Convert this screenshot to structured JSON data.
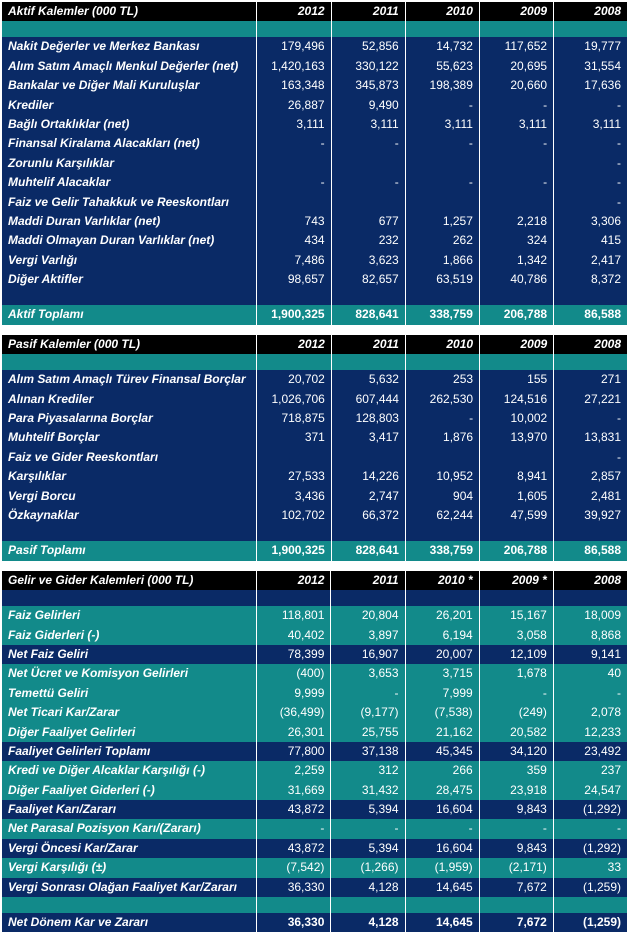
{
  "colors": {
    "header_bg": "#000000",
    "header_fg": "#ffffff",
    "navy_bg": "#0a2a66",
    "navy_fg": "#ffffff",
    "teal_bg": "#128a8a",
    "teal_fg": "#ffffff",
    "cell_border": "#ffffff"
  },
  "years": [
    "2012",
    "2011",
    "2010",
    "2009",
    "2008"
  ],
  "tables": {
    "assets": {
      "title": "Aktif Kalemler (000 TL)",
      "sep_colors": [
        "teal",
        "navy"
      ],
      "rows": [
        {
          "label": "Nakit Değerler ve Merkez Bankası",
          "style": "navy",
          "v": [
            "179,496",
            "52,856",
            "14,732",
            "117,652",
            "19,777"
          ]
        },
        {
          "label": "Alım Satım Amaçlı Menkul Değerler (net)",
          "style": "navy",
          "v": [
            "1,420,163",
            "330,122",
            "55,623",
            "20,695",
            "31,554"
          ]
        },
        {
          "label": "Bankalar ve Diğer Mali Kuruluşlar",
          "style": "navy",
          "v": [
            "163,348",
            "345,873",
            "198,389",
            "20,660",
            "17,636"
          ]
        },
        {
          "label": "Krediler",
          "style": "navy",
          "v": [
            "26,887",
            "9,490",
            "-",
            "-",
            "-"
          ]
        },
        {
          "label": "Bağlı Ortaklıklar (net)",
          "style": "navy",
          "v": [
            "3,111",
            "3,111",
            "3,111",
            "3,111",
            "3,111"
          ]
        },
        {
          "label": "Finansal Kiralama Alacakları (net)",
          "style": "navy",
          "v": [
            "-",
            "-",
            "-",
            "-",
            "-"
          ]
        },
        {
          "label": "Zorunlu Karşılıklar",
          "style": "navy",
          "v": [
            "",
            "",
            "",
            "",
            "-"
          ]
        },
        {
          "label": "Muhtelif Alacaklar",
          "style": "navy",
          "v": [
            "-",
            "-",
            "-",
            "-",
            "-"
          ]
        },
        {
          "label": "Faiz ve Gelir Tahakkuk ve Reeskontları",
          "style": "navy",
          "v": [
            "",
            "",
            "",
            "",
            "-"
          ]
        },
        {
          "label": "Maddi Duran Varlıklar (net)",
          "style": "navy",
          "v": [
            "743",
            "677",
            "1,257",
            "2,218",
            "3,306"
          ]
        },
        {
          "label": "Maddi Olmayan Duran Varlıklar (net)",
          "style": "navy",
          "v": [
            "434",
            "232",
            "262",
            "324",
            "415"
          ]
        },
        {
          "label": "Vergi Varlığı",
          "style": "navy",
          "v": [
            "7,486",
            "3,623",
            "1,866",
            "1,342",
            "2,417"
          ]
        },
        {
          "label": "Diğer Aktifler",
          "style": "navy",
          "v": [
            "98,657",
            "82,657",
            "63,519",
            "40,786",
            "8,372"
          ]
        }
      ],
      "total": {
        "label": "Aktif Toplamı",
        "style": "teal",
        "v": [
          "1,900,325",
          "828,641",
          "338,759",
          "206,788",
          "86,588"
        ]
      }
    },
    "liabilities": {
      "title": "Pasif Kalemler (000 TL)",
      "sep_colors": [
        "teal",
        "navy"
      ],
      "rows": [
        {
          "label": "Alım Satım Amaçlı Türev Finansal Borçlar",
          "style": "navy",
          "v": [
            "20,702",
            "5,632",
            "253",
            "155",
            "271"
          ]
        },
        {
          "label": "Alınan Krediler",
          "style": "navy",
          "v": [
            "1,026,706",
            "607,444",
            "262,530",
            "124,516",
            "27,221"
          ]
        },
        {
          "label": "Para Piyasalarına Borçlar",
          "style": "navy",
          "v": [
            "718,875",
            "128,803",
            "-",
            "10,002",
            "-"
          ]
        },
        {
          "label": "Muhtelif Borçlar",
          "style": "navy",
          "v": [
            "371",
            "3,417",
            "1,876",
            "13,970",
            "13,831"
          ]
        },
        {
          "label": "Faiz ve Gider Reeskontları",
          "style": "navy",
          "v": [
            "",
            "",
            "",
            "",
            "-"
          ]
        },
        {
          "label": "Karşılıklar",
          "style": "navy",
          "v": [
            "27,533",
            "14,226",
            "10,952",
            "8,941",
            "2,857"
          ]
        },
        {
          "label": "Vergi Borcu",
          "style": "navy",
          "v": [
            "3,436",
            "2,747",
            "904",
            "1,605",
            "2,481"
          ]
        },
        {
          "label": "Özkaynaklar",
          "style": "navy",
          "v": [
            "102,702",
            "66,372",
            "62,244",
            "47,599",
            "39,927"
          ]
        }
      ],
      "total": {
        "label": "Pasif Toplamı",
        "style": "teal",
        "v": [
          "1,900,325",
          "828,641",
          "338,759",
          "206,788",
          "86,588"
        ]
      }
    },
    "income": {
      "title": "Gelir ve Gider Kalemleri (000 TL)",
      "years_override": [
        "2012",
        "2011",
        "2010 *",
        "2009 *",
        "2008"
      ],
      "sep_colors": [
        "navy",
        "teal"
      ],
      "rows": [
        {
          "label": "Faiz Gelirleri",
          "style": "teal",
          "v": [
            "118,801",
            "20,804",
            "26,201",
            "15,167",
            "18,009"
          ]
        },
        {
          "label": "Faiz Giderleri (-)",
          "style": "teal",
          "v": [
            "40,402",
            "3,897",
            "6,194",
            "3,058",
            "8,868"
          ]
        },
        {
          "label": "Net Faiz Geliri",
          "style": "navy",
          "v": [
            "78,399",
            "16,907",
            "20,007",
            "12,109",
            "9,141"
          ]
        },
        {
          "label": "Net Ücret ve Komisyon Gelirleri",
          "style": "teal",
          "v": [
            "(400)",
            "3,653",
            "3,715",
            "1,678",
            "40"
          ]
        },
        {
          "label": "Temettü Geliri",
          "style": "teal",
          "v": [
            "9,999",
            "-",
            "7,999",
            "-",
            "-"
          ]
        },
        {
          "label": "Net Ticari Kar/Zarar",
          "style": "teal",
          "v": [
            "(36,499)",
            "(9,177)",
            "(7,538)",
            "(249)",
            "2,078"
          ]
        },
        {
          "label": "Diğer Faaliyet Gelirleri",
          "style": "teal",
          "v": [
            "26,301",
            "25,755",
            "21,162",
            "20,582",
            "12,233"
          ]
        },
        {
          "label": "Faaliyet Gelirleri Toplamı",
          "style": "navy",
          "v": [
            "77,800",
            "37,138",
            "45,345",
            "34,120",
            "23,492"
          ]
        },
        {
          "label": "Kredi ve Diğer Alcaklar Karşılığı (-)",
          "style": "teal",
          "v": [
            "2,259",
            "312",
            "266",
            "359",
            "237"
          ]
        },
        {
          "label": "Diğer Faaliyet Giderleri (-)",
          "style": "teal",
          "v": [
            "31,669",
            "31,432",
            "28,475",
            "23,918",
            "24,547"
          ]
        },
        {
          "label": "Faaliyet Karı/Zararı",
          "style": "navy",
          "v": [
            "43,872",
            "5,394",
            "16,604",
            "9,843",
            "(1,292)"
          ]
        },
        {
          "label": "Net Parasal Pozisyon Karı/(Zararı)",
          "style": "teal",
          "v": [
            "-",
            "-",
            "-",
            "-",
            "-"
          ]
        },
        {
          "label": "Vergi Öncesi Kar/Zarar",
          "style": "navy",
          "v": [
            "43,872",
            "5,394",
            "16,604",
            "9,843",
            "(1,292)"
          ]
        },
        {
          "label": "Vergi Karşılığı (±)",
          "style": "teal",
          "v": [
            "(7,542)",
            "(1,266)",
            "(1,959)",
            "(2,171)",
            "33"
          ]
        },
        {
          "label": "Vergi Sonrası Olağan Faaliyet Kar/Zararı",
          "style": "navy",
          "v": [
            "36,330",
            "4,128",
            "14,645",
            "7,672",
            "(1,259)"
          ]
        }
      ],
      "total": {
        "label": "Net Dönem Kar ve Zararı",
        "style": "navy",
        "v": [
          "36,330",
          "4,128",
          "14,645",
          "7,672",
          "(1,259)"
        ]
      }
    }
  }
}
